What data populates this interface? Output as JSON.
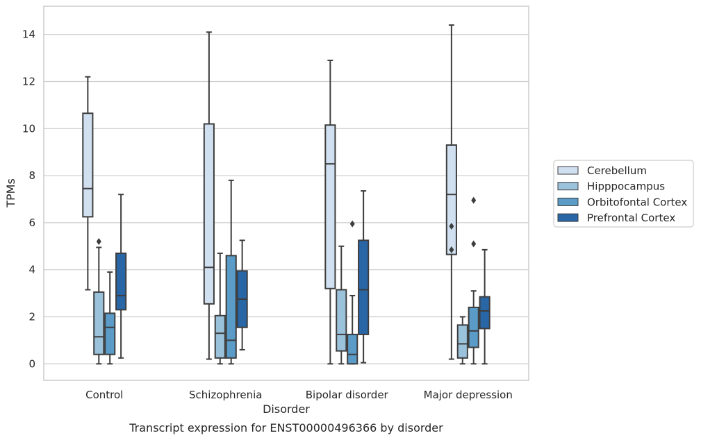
{
  "chart_data": {
    "type": "boxplot",
    "title": "",
    "caption": "Transcript expression for ENST00000496366 by disorder",
    "xlabel": "Disorder",
    "ylabel": "TPMs",
    "ylim": [
      -0.7,
      15.2
    ],
    "yticks": [
      0,
      2,
      4,
      6,
      8,
      10,
      12,
      14
    ],
    "grid": "horizontal",
    "legend_position": "right",
    "categories": [
      "Control",
      "Schizophrenia",
      "Bipolar disorder",
      "Major depression"
    ],
    "series": [
      {
        "name": "Cerebellum",
        "color": "#d1e0f0",
        "boxes": [
          {
            "whislo": 3.15,
            "q1": 6.25,
            "med": 7.45,
            "q3": 10.65,
            "whishi": 12.2,
            "fliers": []
          },
          {
            "whislo": 0.2,
            "q1": 2.55,
            "med": 4.1,
            "q3": 10.2,
            "whishi": 14.1,
            "fliers": []
          },
          {
            "whislo": 0.0,
            "q1": 3.2,
            "med": 8.5,
            "q3": 10.15,
            "whishi": 12.9,
            "fliers": []
          },
          {
            "whislo": 0.2,
            "q1": 4.65,
            "med": 7.2,
            "q3": 9.3,
            "whishi": 14.4,
            "fliers": [
              5.85,
              4.85
            ]
          }
        ]
      },
      {
        "name": "Hipppocampus",
        "color": "#9bc2db",
        "boxes": [
          {
            "whislo": 0.0,
            "q1": 0.4,
            "med": 1.15,
            "q3": 3.05,
            "whishi": 4.95,
            "fliers": [
              5.2
            ]
          },
          {
            "whislo": 0.0,
            "q1": 0.25,
            "med": 1.3,
            "q3": 2.05,
            "whishi": 4.7,
            "fliers": []
          },
          {
            "whislo": 0.0,
            "q1": 0.55,
            "med": 1.25,
            "q3": 3.15,
            "whishi": 5.0,
            "fliers": []
          },
          {
            "whislo": 0.0,
            "q1": 0.25,
            "med": 0.85,
            "q3": 1.65,
            "whishi": 2.0,
            "fliers": []
          }
        ]
      },
      {
        "name": "Orbitofontal Cortex",
        "color": "#5a9bc7",
        "boxes": [
          {
            "whislo": 0.0,
            "q1": 0.4,
            "med": 1.55,
            "q3": 2.15,
            "whishi": 3.9,
            "fliers": []
          },
          {
            "whislo": 0.0,
            "q1": 0.25,
            "med": 1.0,
            "q3": 4.6,
            "whishi": 7.8,
            "fliers": []
          },
          {
            "whislo": 0.0,
            "q1": 0.0,
            "med": 0.4,
            "q3": 1.25,
            "whishi": 2.9,
            "fliers": [
              5.95
            ]
          },
          {
            "whislo": 0.0,
            "q1": 0.7,
            "med": 1.4,
            "q3": 2.4,
            "whishi": 3.1,
            "fliers": [
              6.95,
              5.1
            ]
          }
        ]
      },
      {
        "name": "Prefrontal Cortex",
        "color": "#2866a6",
        "boxes": [
          {
            "whislo": 0.25,
            "q1": 2.3,
            "med": 2.9,
            "q3": 4.7,
            "whishi": 7.2,
            "fliers": []
          },
          {
            "whislo": 0.6,
            "q1": 1.55,
            "med": 2.75,
            "q3": 3.95,
            "whishi": 5.25,
            "fliers": []
          },
          {
            "whislo": 0.05,
            "q1": 1.25,
            "med": 3.15,
            "q3": 5.25,
            "whishi": 7.35,
            "fliers": []
          },
          {
            "whislo": 0.0,
            "q1": 1.5,
            "med": 2.25,
            "q3": 2.85,
            "whishi": 4.85,
            "fliers": []
          }
        ]
      }
    ]
  }
}
